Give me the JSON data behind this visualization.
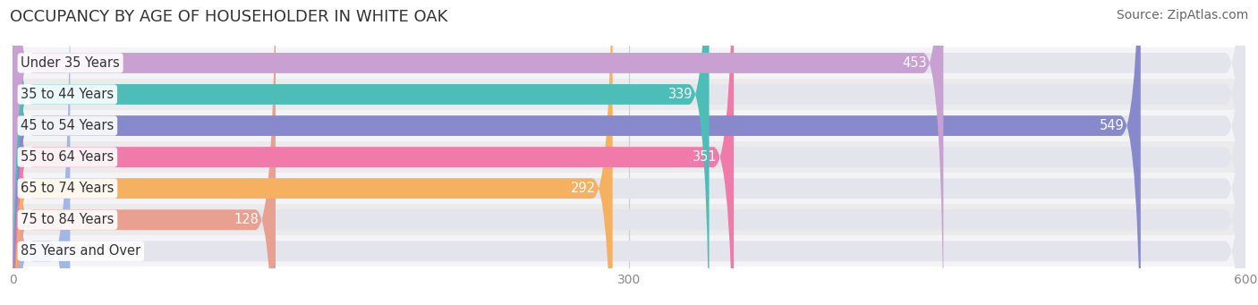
{
  "title": "OCCUPANCY BY AGE OF HOUSEHOLDER IN WHITE OAK",
  "source": "Source: ZipAtlas.com",
  "categories": [
    "Under 35 Years",
    "35 to 44 Years",
    "45 to 54 Years",
    "55 to 64 Years",
    "65 to 74 Years",
    "75 to 84 Years",
    "85 Years and Over"
  ],
  "values": [
    453,
    339,
    549,
    351,
    292,
    128,
    28
  ],
  "bar_colors": [
    "#c9a0d2",
    "#4dbdb8",
    "#8888cc",
    "#f07aaa",
    "#f5b060",
    "#e8a090",
    "#a0b8e8"
  ],
  "bar_bg_color": "#e4e4ec",
  "xlim": [
    0,
    600
  ],
  "xticks": [
    0,
    300,
    600
  ],
  "value_label_color_in": "#ffffff",
  "value_label_color_out": "#555555",
  "title_fontsize": 13,
  "source_fontsize": 10,
  "label_fontsize": 10.5,
  "value_fontsize": 10.5,
  "background_color": "#ffffff",
  "grid_color": "#cccccc",
  "bar_height": 0.65,
  "row_bg_colors": [
    "#f4f4f8",
    "#ebebeb"
  ]
}
